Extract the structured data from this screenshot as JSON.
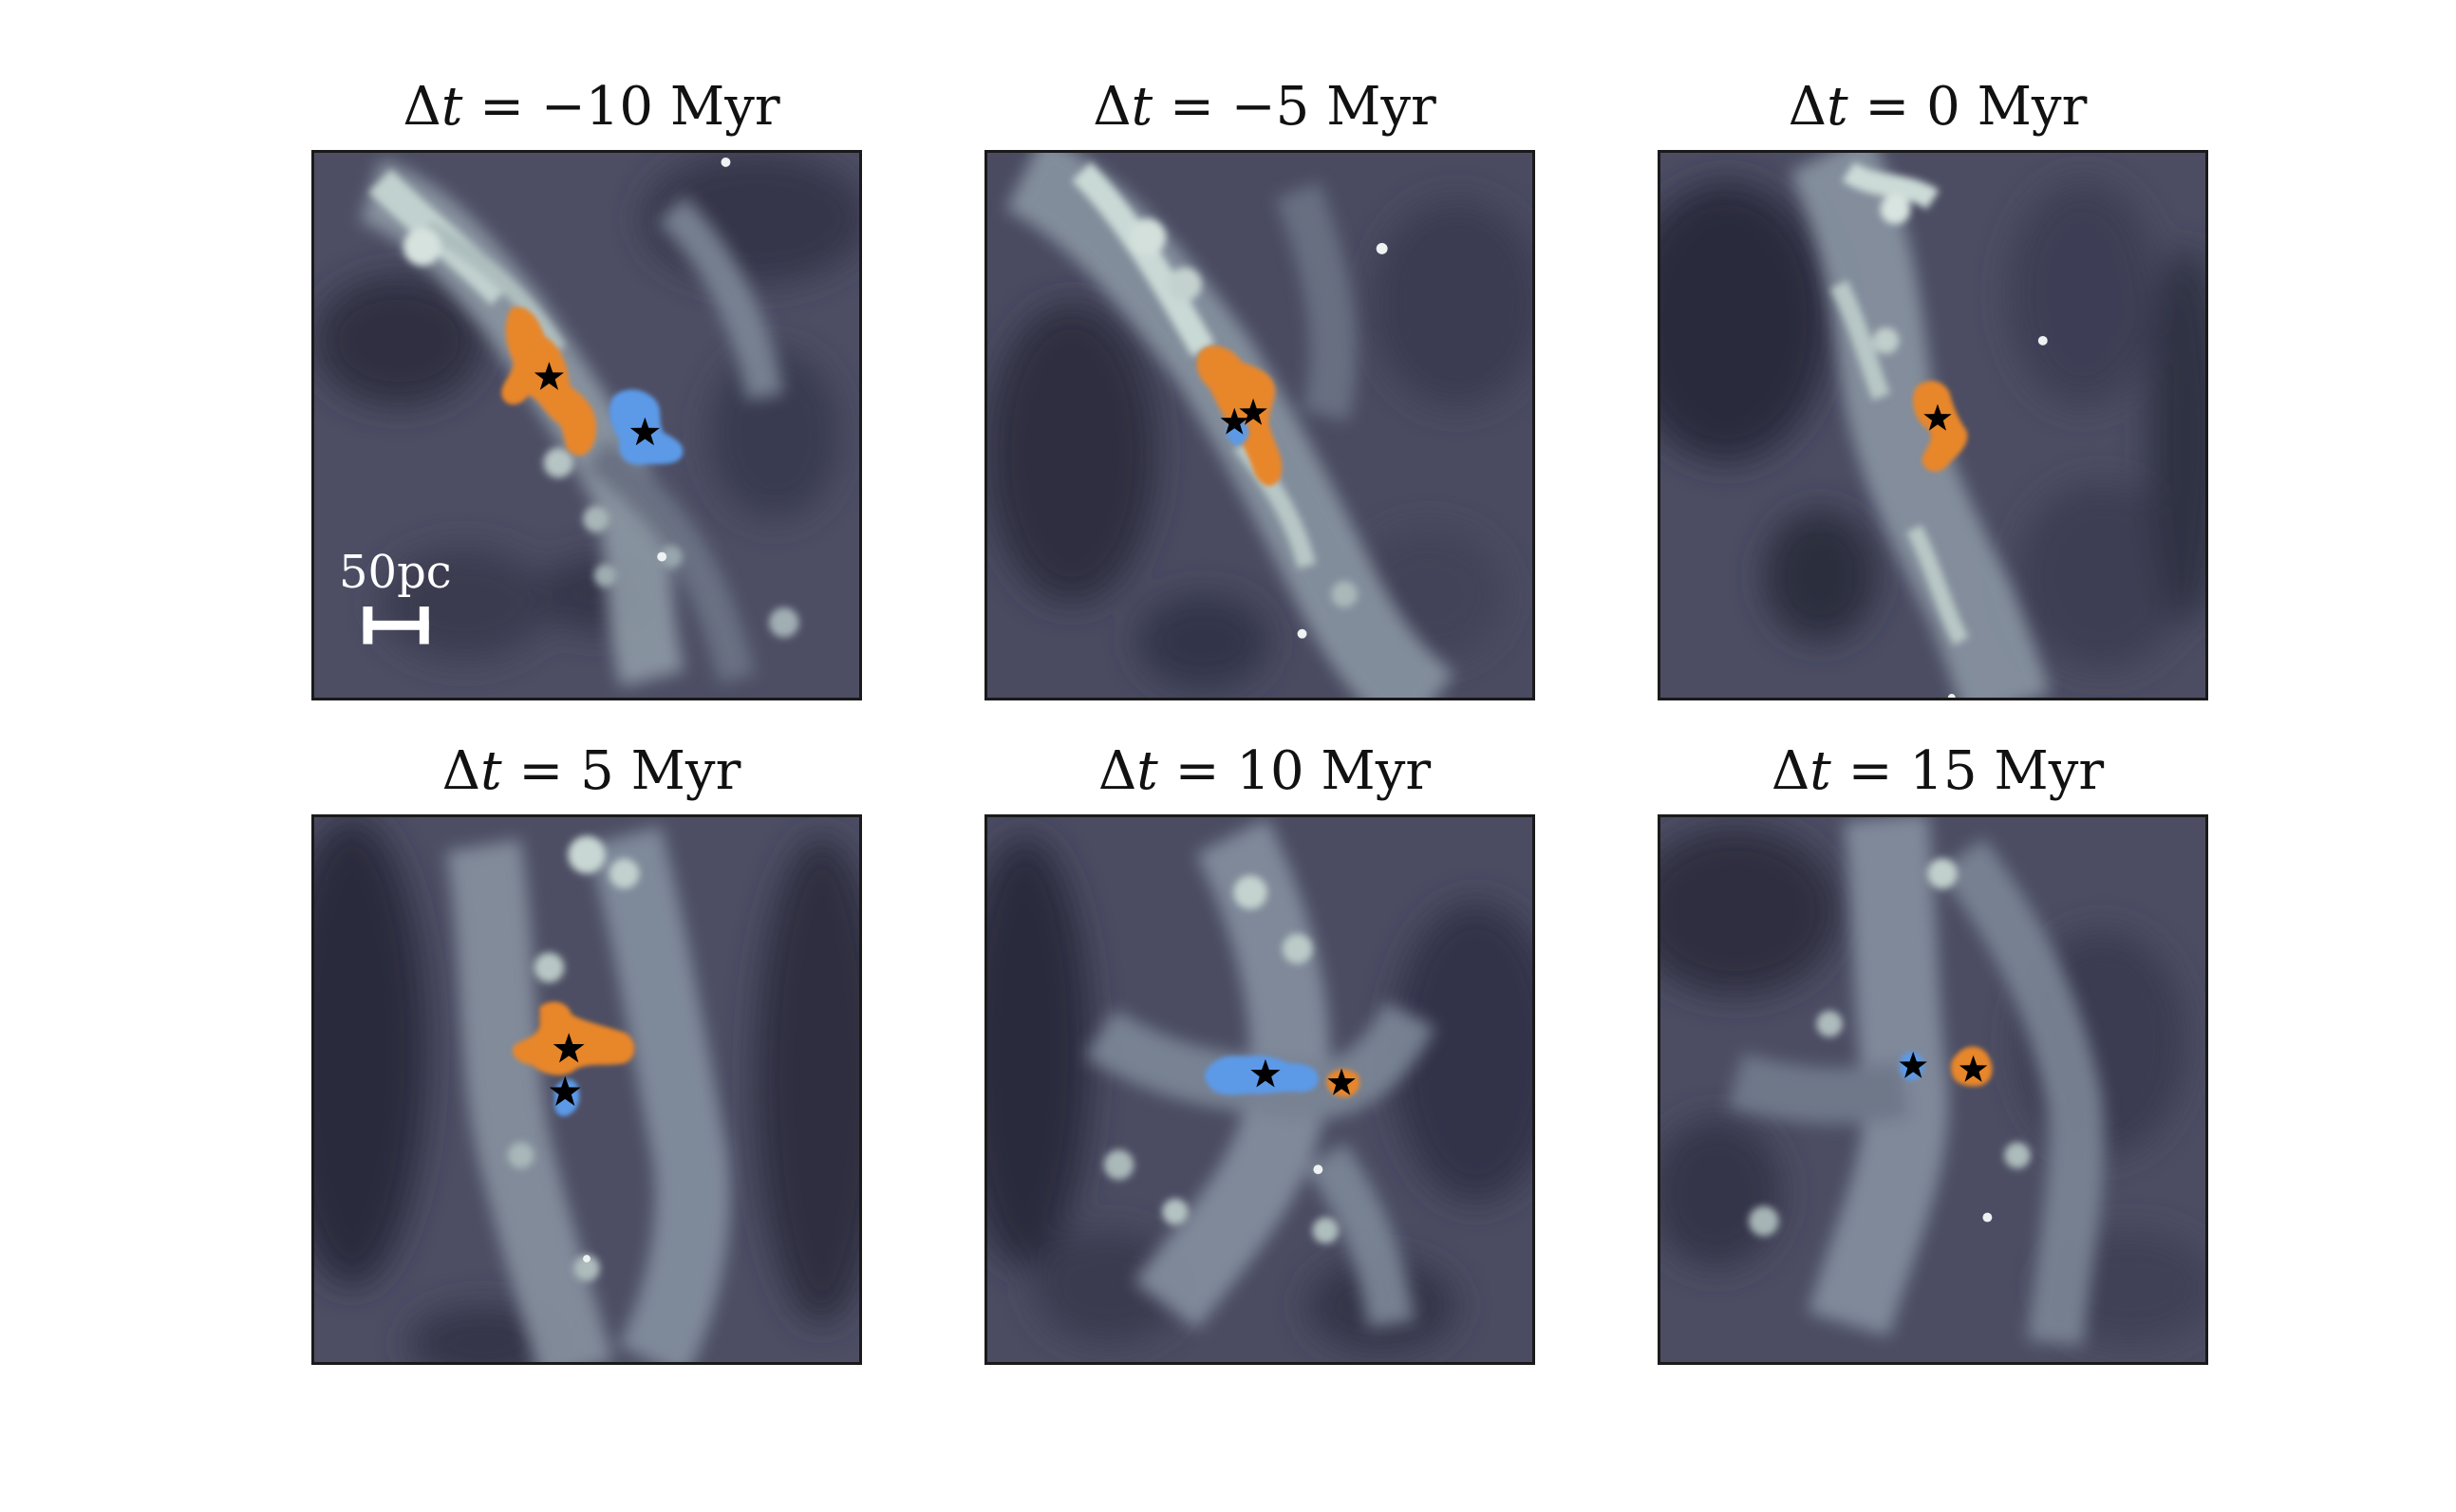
{
  "figure": {
    "panels": [
      {
        "id": "p1",
        "title": "Δt = −10 Myr",
        "title_parts": {
          "delta": "Δ",
          "var": "t",
          "eq": " = ",
          "value": "−10",
          "unit": "Myr"
        }
      },
      {
        "id": "p2",
        "title": "Δt = −5 Myr",
        "title_parts": {
          "delta": "Δ",
          "var": "t",
          "eq": " = ",
          "value": "−5",
          "unit": "Myr"
        }
      },
      {
        "id": "p3",
        "title": "Δt = 0 Myr",
        "title_parts": {
          "delta": "Δ",
          "var": "t",
          "eq": " = ",
          "value": "0",
          "unit": "Myr"
        }
      },
      {
        "id": "p4",
        "title": "Δt = 5 Myr",
        "title_parts": {
          "delta": "Δ",
          "var": "t",
          "eq": " = ",
          "value": "5",
          "unit": "Myr"
        }
      },
      {
        "id": "p5",
        "title": "Δt = 10 Myr",
        "title_parts": {
          "delta": "Δ",
          "var": "t",
          "eq": " = ",
          "value": "10",
          "unit": "Myr"
        }
      },
      {
        "id": "p6",
        "title": "Δt = 15 Myr",
        "title_parts": {
          "delta": "Δ",
          "var": "t",
          "eq": " = ",
          "value": "15",
          "unit": "Myr"
        }
      }
    ],
    "scale_bar": {
      "label": "50pc"
    },
    "colors": {
      "cluster_orange": "#e8862a",
      "cluster_blue": "#5c9ae8",
      "gas_dark": "#2e2f40",
      "gas_mid": "#5f6178",
      "gas_bright": "#c8d6d4",
      "star_marker": "#000000",
      "frame": "#1a1a1a"
    },
    "icons": {
      "marker": "star-icon",
      "scale": "scale-bar-icon"
    }
  }
}
